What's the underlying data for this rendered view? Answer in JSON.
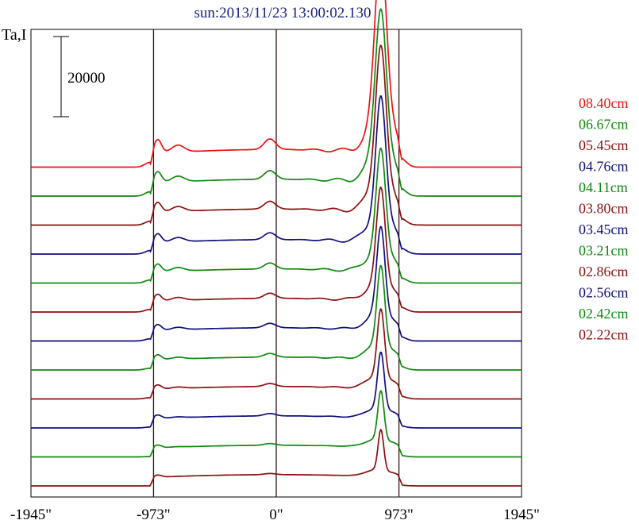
{
  "chart_data": {
    "type": "line",
    "title": "sun:2013/11/23 13:00:02.130",
    "ylabel": "Ta,I",
    "xlabel": "",
    "x_ticks": [
      {
        "value": -1945,
        "label": "-1945\""
      },
      {
        "value": -973,
        "label": "-973\""
      },
      {
        "value": 0,
        "label": "0\""
      },
      {
        "value": 973,
        "label": "973\""
      },
      {
        "value": 1945,
        "label": "1945\""
      }
    ],
    "xlim": [
      -1945,
      1945
    ],
    "vertical_lines": [
      -973,
      0,
      973
    ],
    "scale_bar": {
      "label": "20000",
      "value": 20000
    },
    "legend_position": "right",
    "series": [
      {
        "name": "08.40cm",
        "color": "#ee1111",
        "offset": 11,
        "peak": 43000,
        "disk": 4400,
        "limb": 4400
      },
      {
        "name": "06.67cm",
        "color": "#118811",
        "offset": 10,
        "peak": 37000,
        "disk": 4200,
        "limb": 3900
      },
      {
        "name": "05.45cm",
        "color": "#8b1010",
        "offset": 9,
        "peak": 35500,
        "disk": 4000,
        "limb": 3800
      },
      {
        "name": "04.76cm",
        "color": "#10107a",
        "offset": 8,
        "peak": 31000,
        "disk": 3600,
        "limb": 3700
      },
      {
        "name": "04.11cm",
        "color": "#118811",
        "offset": 7,
        "peak": 26000,
        "disk": 3500,
        "limb": 3600
      },
      {
        "name": "03.80cm",
        "color": "#8b1010",
        "offset": 6,
        "peak": 24000,
        "disk": 3400,
        "limb": 3500
      },
      {
        "name": "03.45cm",
        "color": "#10107a",
        "offset": 5,
        "peak": 22000,
        "disk": 3300,
        "limb": 3400
      },
      {
        "name": "03.21cm",
        "color": "#118811",
        "offset": 4,
        "peak": 20000,
        "disk": 3200,
        "limb": 3300
      },
      {
        "name": "02.86cm",
        "color": "#8b1010",
        "offset": 3,
        "peak": 17000,
        "disk": 3100,
        "limb": 3200
      },
      {
        "name": "02.56cm",
        "color": "#10107a",
        "offset": 2,
        "peak": 14000,
        "disk": 3000,
        "limb": 3100
      },
      {
        "name": "02.42cm",
        "color": "#118811",
        "offset": 1,
        "peak": 12000,
        "disk": 2900,
        "limb": 3000
      },
      {
        "name": "02.22cm",
        "color": "#8b1010",
        "offset": 0,
        "peak": 10000,
        "disk": 2800,
        "limb": 2900
      }
    ]
  }
}
